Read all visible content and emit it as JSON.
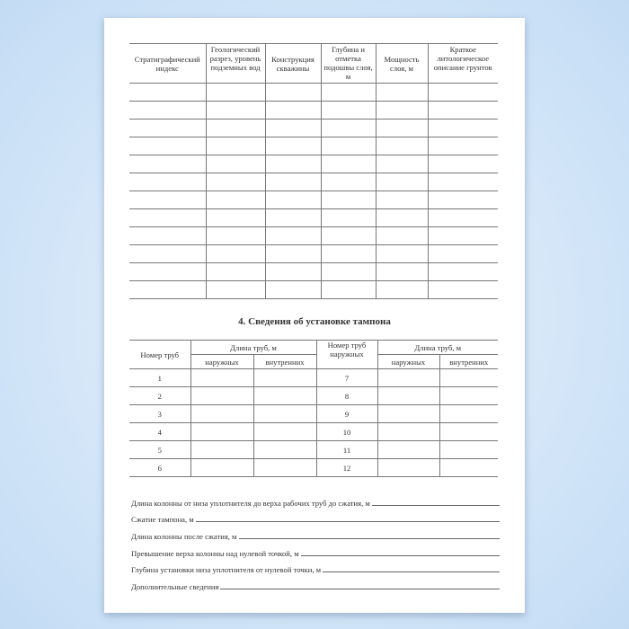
{
  "table1": {
    "headers": [
      "Стратиграфический индекс",
      "Геологический разрез, уровень подземных вод",
      "Конструкция скважины",
      "Глубина и отметка подошвы слоя, м",
      "Мощность слоя, м",
      "Краткое литологическое описание грунтов"
    ]
  },
  "section_title": "4. Сведения об установке тампона",
  "table2": {
    "col_number": "Номер труб",
    "col_length": "Длина труб, м",
    "col_number_outer": "Номер труб наружных",
    "sub_outer": "наружных",
    "sub_inner": "внутренних",
    "left_numbers": [
      "1",
      "2",
      "3",
      "4",
      "5",
      "6"
    ],
    "right_numbers": [
      "7",
      "8",
      "9",
      "10",
      "11",
      "12"
    ]
  },
  "fields": [
    "Длина колонны от низа уплотнителя до верха рабочих труб до сжатия, м",
    "Сжатие тампона, м",
    "Длина колонны после сжатия, м",
    "Превышение верха колонны над нулевой точкой, м",
    "Глубина установки низа уплотнителя от нулевой точки, м",
    "Дополнительные сведения"
  ]
}
